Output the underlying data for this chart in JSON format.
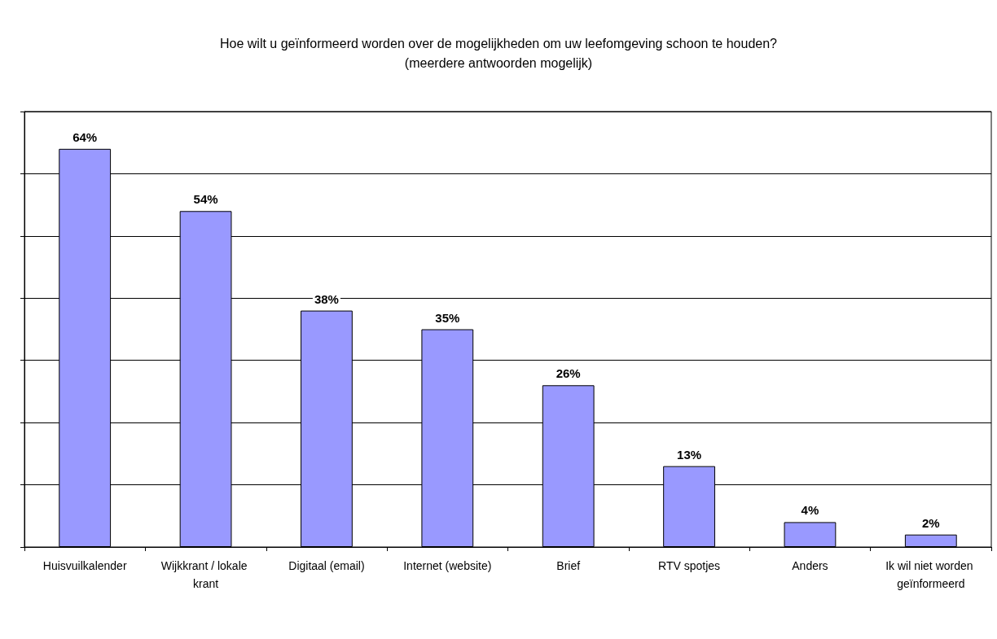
{
  "chart_data": {
    "type": "bar",
    "title": "Hoe wilt u geïnformeerd worden over de mogelijkheden om uw leefomgeving schoon te houden?",
    "subtitle": "(meerdere antwoorden mogelijk)",
    "categories": [
      "Huisvuilkalender",
      "Wijkkrant / lokale krant",
      "Digitaal (email)",
      "Internet (website)",
      "Brief",
      "RTV spotjes",
      "Anders",
      "Ik wil niet worden geïnformeerd"
    ],
    "values": [
      64,
      54,
      38,
      35,
      26,
      13,
      4,
      2
    ],
    "value_labels": [
      "64%",
      "54%",
      "38%",
      "35%",
      "26%",
      "13%",
      "4%",
      "2%"
    ],
    "color": "#9999ff",
    "ylim": [
      0,
      70
    ],
    "yticks": [
      {
        "value": 0,
        "label": null
      },
      {
        "value": 10,
        "label": null
      },
      {
        "value": 20,
        "label": null
      },
      {
        "value": 30,
        "label": null
      },
      {
        "value": 40,
        "label": null
      },
      {
        "value": 50,
        "label": null
      },
      {
        "value": 60,
        "label": null
      },
      {
        "value": 70,
        "label": null
      }
    ],
    "grid": "y",
    "tick_labels": "x"
  }
}
